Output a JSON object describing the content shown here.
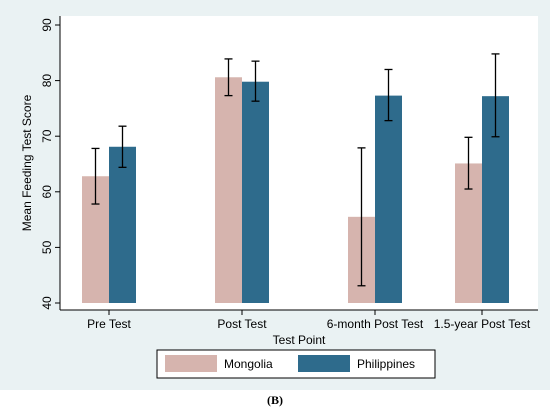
{
  "caption": "(B)",
  "chart_data": {
    "type": "bar",
    "title": "",
    "xlabel": "Test Point",
    "ylabel": "Mean Feeding Test Score",
    "ylim": [
      40,
      90
    ],
    "yticks": [
      "40",
      "50",
      "60",
      "70",
      "80",
      "90"
    ],
    "categories": [
      "Pre Test",
      "Post Test",
      "6-month Post Test",
      "1.5-year Post Test"
    ],
    "series": [
      {
        "name": "Mongolia",
        "color": "#d6b4ae",
        "values": [
          62.8,
          80.6,
          55.5,
          65.1
        ],
        "err_low": [
          57.8,
          77.3,
          43.1,
          60.5
        ],
        "err_high": [
          67.8,
          83.9,
          67.9,
          69.8
        ]
      },
      {
        "name": "Philippines",
        "color": "#2e6b8c",
        "values": [
          68.1,
          79.8,
          77.3,
          77.2
        ],
        "err_low": [
          64.4,
          76.3,
          72.8,
          69.9
        ],
        "err_high": [
          71.8,
          83.5,
          82.0,
          84.8
        ]
      }
    ],
    "legend_position": "bottom",
    "grid": false,
    "error_bars": true
  }
}
